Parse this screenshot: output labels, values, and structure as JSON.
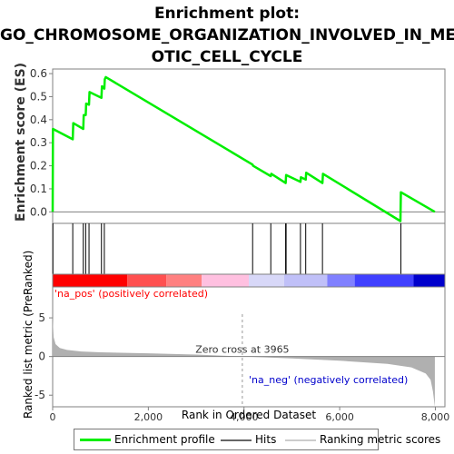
{
  "title_line1": "Enrichment plot:",
  "title_line2": "GO_CHROMOSOME_ORGANIZATION_INVOLVED_IN_MEI",
  "title_line3": "OTIC_CELL_CYCLE",
  "colors": {
    "enrichment": "#00ee00",
    "hits": "#000000",
    "ranking_fill": "#b0b0b0",
    "pos_label": "#ff0000",
    "neg_label": "#0000cc",
    "zero_line": "#808080"
  },
  "legend": {
    "enrichment_profile": "Enrichment profile",
    "hits": "Hits",
    "ranking_metric_scores": "Ranking metric scores"
  },
  "chart_data": [
    {
      "type": "line",
      "name": "enrichment-score-panel",
      "ylabel": "Enrichment score (ES)",
      "xlim": [
        0,
        8200
      ],
      "ylim": [
        -0.05,
        0.62
      ],
      "yticks": [
        "0.0",
        "0.1",
        "0.2",
        "0.3",
        "0.4",
        "0.5",
        "0.6"
      ],
      "ytick_values": [
        0.0,
        0.1,
        0.2,
        0.3,
        0.4,
        0.5,
        0.6
      ],
      "grid": false,
      "series": [
        {
          "x": [
            0,
            5,
            420,
            430,
            640,
            650,
            690,
            700,
            760,
            770,
            1020,
            1030,
            1080,
            1090,
            1110,
            4180,
            4190,
            4560,
            4570,
            4870,
            4880,
            5180,
            5190,
            5290,
            5300,
            5640,
            5650,
            7270,
            7280,
            7990
          ],
          "y": [
            0.0,
            0.36,
            0.315,
            0.385,
            0.36,
            0.42,
            0.42,
            0.47,
            0.465,
            0.52,
            0.495,
            0.545,
            0.535,
            0.575,
            0.585,
            0.205,
            0.2,
            0.155,
            0.165,
            0.125,
            0.16,
            0.13,
            0.15,
            0.14,
            0.17,
            0.125,
            0.165,
            -0.04,
            0.085,
            0.0
          ]
        }
      ]
    },
    {
      "type": "hits",
      "name": "hits-panel",
      "x": [
        5,
        420,
        640,
        690,
        760,
        1020,
        1080,
        4180,
        4560,
        4870,
        4880,
        5180,
        5290,
        5640,
        7280
      ]
    },
    {
      "type": "heatmap",
      "name": "rank-color-bar",
      "colors_left_to_right": [
        "#ff0000",
        "#ff5050",
        "#ff8080",
        "#ffc0e0",
        "#d8d8f8",
        "#c0c0f8",
        "#8080ff",
        "#4040ff",
        "#0000cc"
      ]
    },
    {
      "type": "area",
      "name": "ranked-list-metric-panel",
      "xlabel": "Rank in Ordered Dataset",
      "ylabel": "Ranked list metric (PreRanked)",
      "xlim": [
        0,
        8200
      ],
      "ylim": [
        -6.5,
        9
      ],
      "xticks": [
        "0",
        "2,000",
        "4,000",
        "6,000",
        "8,000"
      ],
      "xtick_values": [
        0,
        2000,
        4000,
        6000,
        8000
      ],
      "yticks": [
        "-5",
        "0",
        "5"
      ],
      "ytick_values": [
        -5,
        0,
        5
      ],
      "x": [
        0,
        20,
        60,
        150,
        300,
        600,
        1000,
        2000,
        3000,
        3965,
        5000,
        6000,
        7000,
        7500,
        7800,
        7900,
        7950,
        7990
      ],
      "y": [
        5.0,
        2.5,
        1.6,
        1.1,
        0.85,
        0.65,
        0.55,
        0.42,
        0.25,
        0.0,
        -0.25,
        -0.55,
        -0.95,
        -1.4,
        -2.2,
        -3.0,
        -4.5,
        -6.5
      ],
      "annotations": {
        "pos": "'na_pos' (positively correlated)",
        "neg": "'na_neg' (negatively correlated)",
        "zero_cross": "Zero cross at 3965"
      },
      "zero_cross_x": 3965
    }
  ]
}
